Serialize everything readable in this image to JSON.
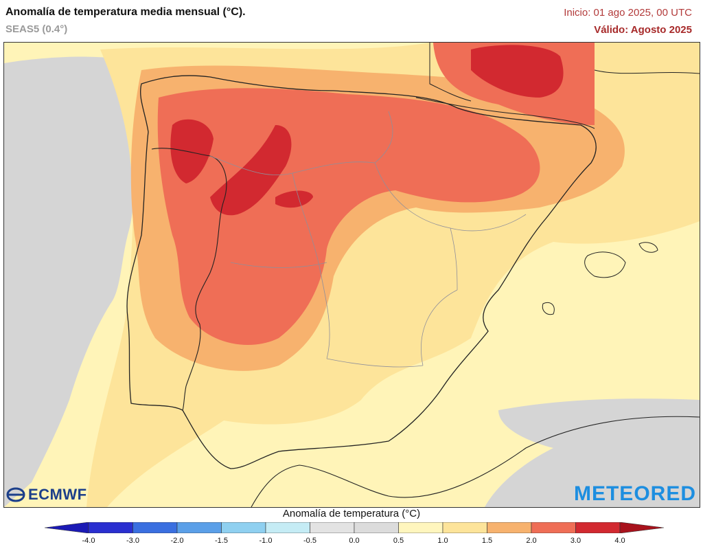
{
  "header": {
    "title": "Anomalía de temperatura media mensual (°C).",
    "subtitle": "SEAS5 (0.4°)",
    "init": "Inicio: 01 ago 2025, 00 UTC",
    "valid": "Válido: Agosto 2025"
  },
  "logos": {
    "ecmwf": "ECMWF",
    "meteored": "METEORED"
  },
  "legend": {
    "title": "Anomalía de temperatura (°C)",
    "ticks": [
      "-4.0",
      "-3.0",
      "-2.0",
      "-1.5",
      "-1.0",
      "-0.5",
      "0.0",
      "0.5",
      "1.0",
      "1.5",
      "2.0",
      "3.0",
      "4.0"
    ],
    "colors": [
      "#2a2fd0",
      "#3a6fe0",
      "#5a9fe8",
      "#8fd0f0",
      "#c5ecf5",
      "#e3e3e3",
      "#dcdcdc",
      "#fff6be",
      "#fde49a",
      "#f7b26e",
      "#ef6e56",
      "#d22930"
    ],
    "low_arrow_color": "#1b1ab5",
    "high_arrow_color": "#a8121c"
  },
  "colors": {
    "sea_neutral": "#d5d5d5",
    "anomaly_05_10": "#fff4b8",
    "anomaly_10_15": "#fde49a",
    "anomaly_15_20": "#f7b26e",
    "anomaly_20_30": "#ef6e56",
    "anomaly_30_40": "#d22930"
  }
}
